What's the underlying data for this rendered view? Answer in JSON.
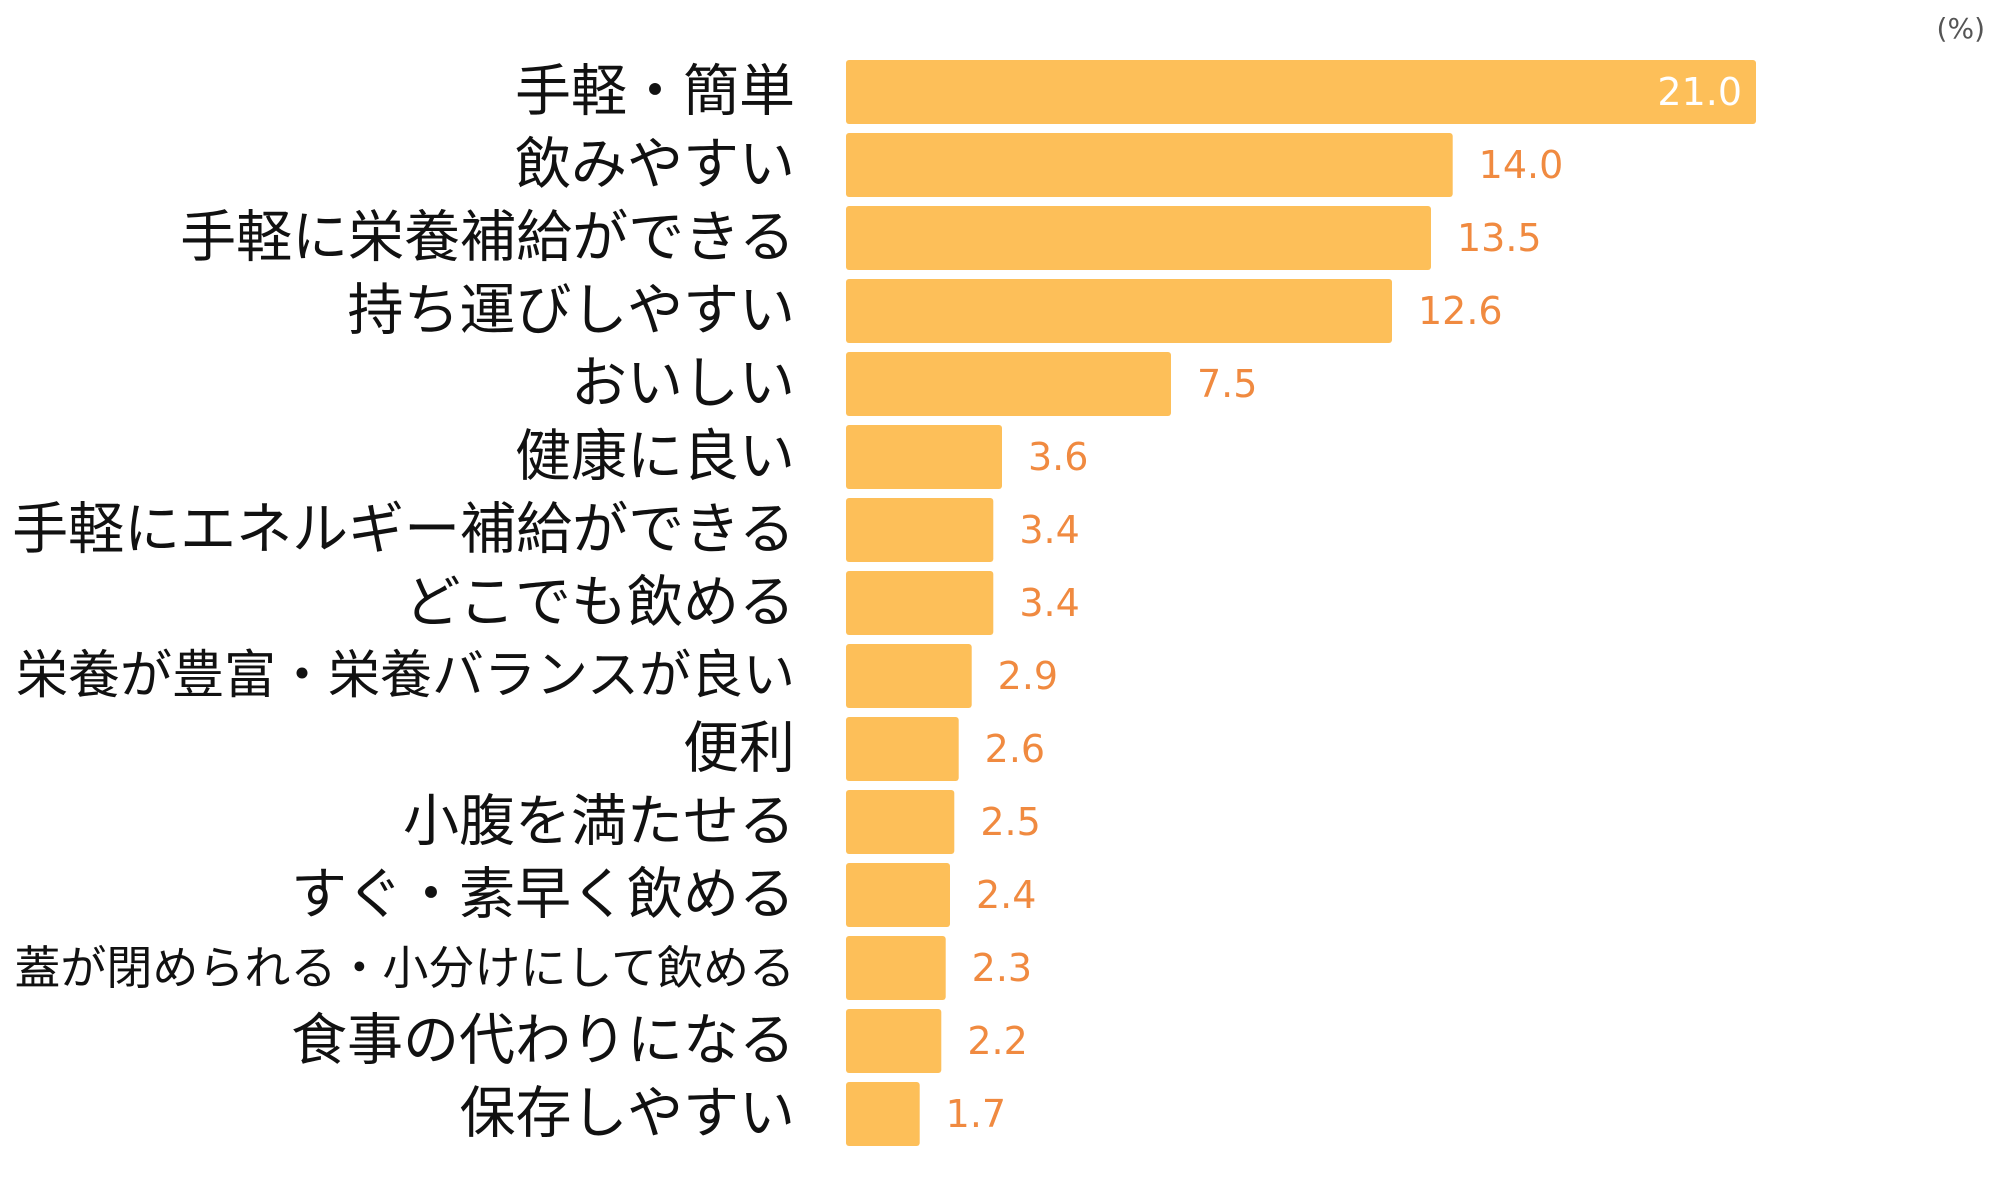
{
  "chart_data": {
    "type": "bar",
    "orientation": "horizontal",
    "unit": "(%)",
    "categories": [
      "手軽・簡単",
      "飲みやすい",
      "手軽に栄養補給ができる",
      "持ち運びしやすい",
      "おいしい",
      "健康に良い",
      "手軽にエネルギー補給ができる",
      "どこでも飲める",
      "栄養が豊富・栄養バランスが良い",
      "便利",
      "小腹を満たせる",
      "すぐ・素早く飲める",
      "蓋が閉められる・小分けにして飲める",
      "食事の代わりになる",
      "保存しやすい"
    ],
    "values": [
      21.0,
      14.0,
      13.5,
      12.6,
      7.5,
      3.6,
      3.4,
      3.4,
      2.9,
      2.6,
      2.5,
      2.4,
      2.3,
      2.2,
      1.7
    ],
    "value_labels": [
      "21.0",
      "14.0",
      "13.5",
      "12.6",
      "7.5",
      "3.6",
      "3.4",
      "3.4",
      "2.9",
      "2.6",
      "2.5",
      "2.4",
      "2.3",
      "2.2",
      "1.7"
    ],
    "xlim": [
      0,
      21.0
    ],
    "grid": false,
    "legend": "none",
    "colors": {
      "bar": "#fdbf59",
      "value_label_outside": "#f08a40",
      "value_label_inside": "#ffffff",
      "category_label": "#111111",
      "unit_label": "#555555"
    }
  }
}
